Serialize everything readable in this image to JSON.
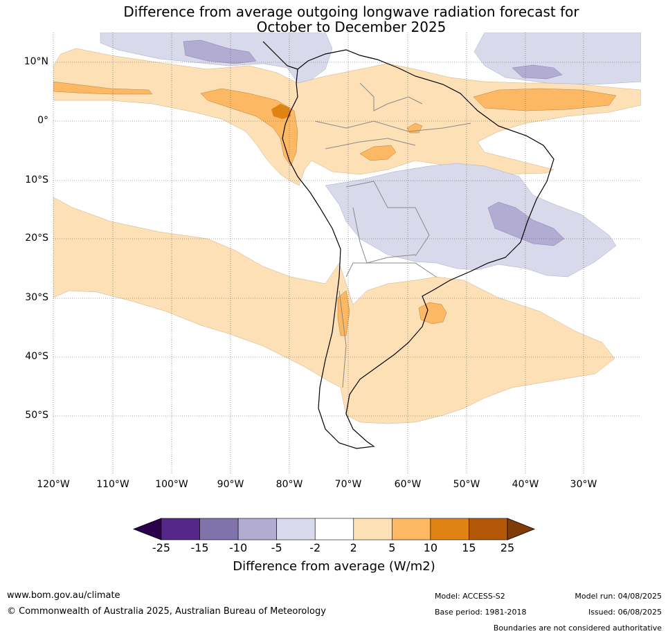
{
  "title_line1": "Difference from average outgoing longwave radiation forecast for",
  "title_line2": "October to December 2025",
  "lat_labels": [
    "10°N",
    "0°",
    "10°S",
    "20°S",
    "30°S",
    "40°S",
    "50°S"
  ],
  "lon_labels": [
    "120°W",
    "110°W",
    "100°W",
    "90°W",
    "80°W",
    "70°W",
    "60°W",
    "50°W",
    "40°W",
    "30°W"
  ],
  "colorbar": {
    "ticks": [
      "-25",
      "-15",
      "-10",
      "-5",
      "-2",
      "2",
      "5",
      "10",
      "15",
      "25"
    ],
    "colors": [
      "#2d004b",
      "#542788",
      "#8073ac",
      "#b2abd2",
      "#d8daeb",
      "#ffffff",
      "#fee0b6",
      "#fdb863",
      "#e08214",
      "#b35806",
      "#7f3b08"
    ],
    "label": "Difference from average (W/m2)"
  },
  "footer": {
    "url": "www.bom.gov.au/climate",
    "copyright": "© Commonwealth of Australia 2025, Australian Bureau of Meteorology",
    "model": "Model: ACCESS-S2",
    "base_period": "Base period: 1981-2018",
    "model_run": "Model run: 04/08/2025",
    "issued": "Issued: 06/08/2025",
    "boundaries_note": "Boundaries are not considered authoritative"
  }
}
